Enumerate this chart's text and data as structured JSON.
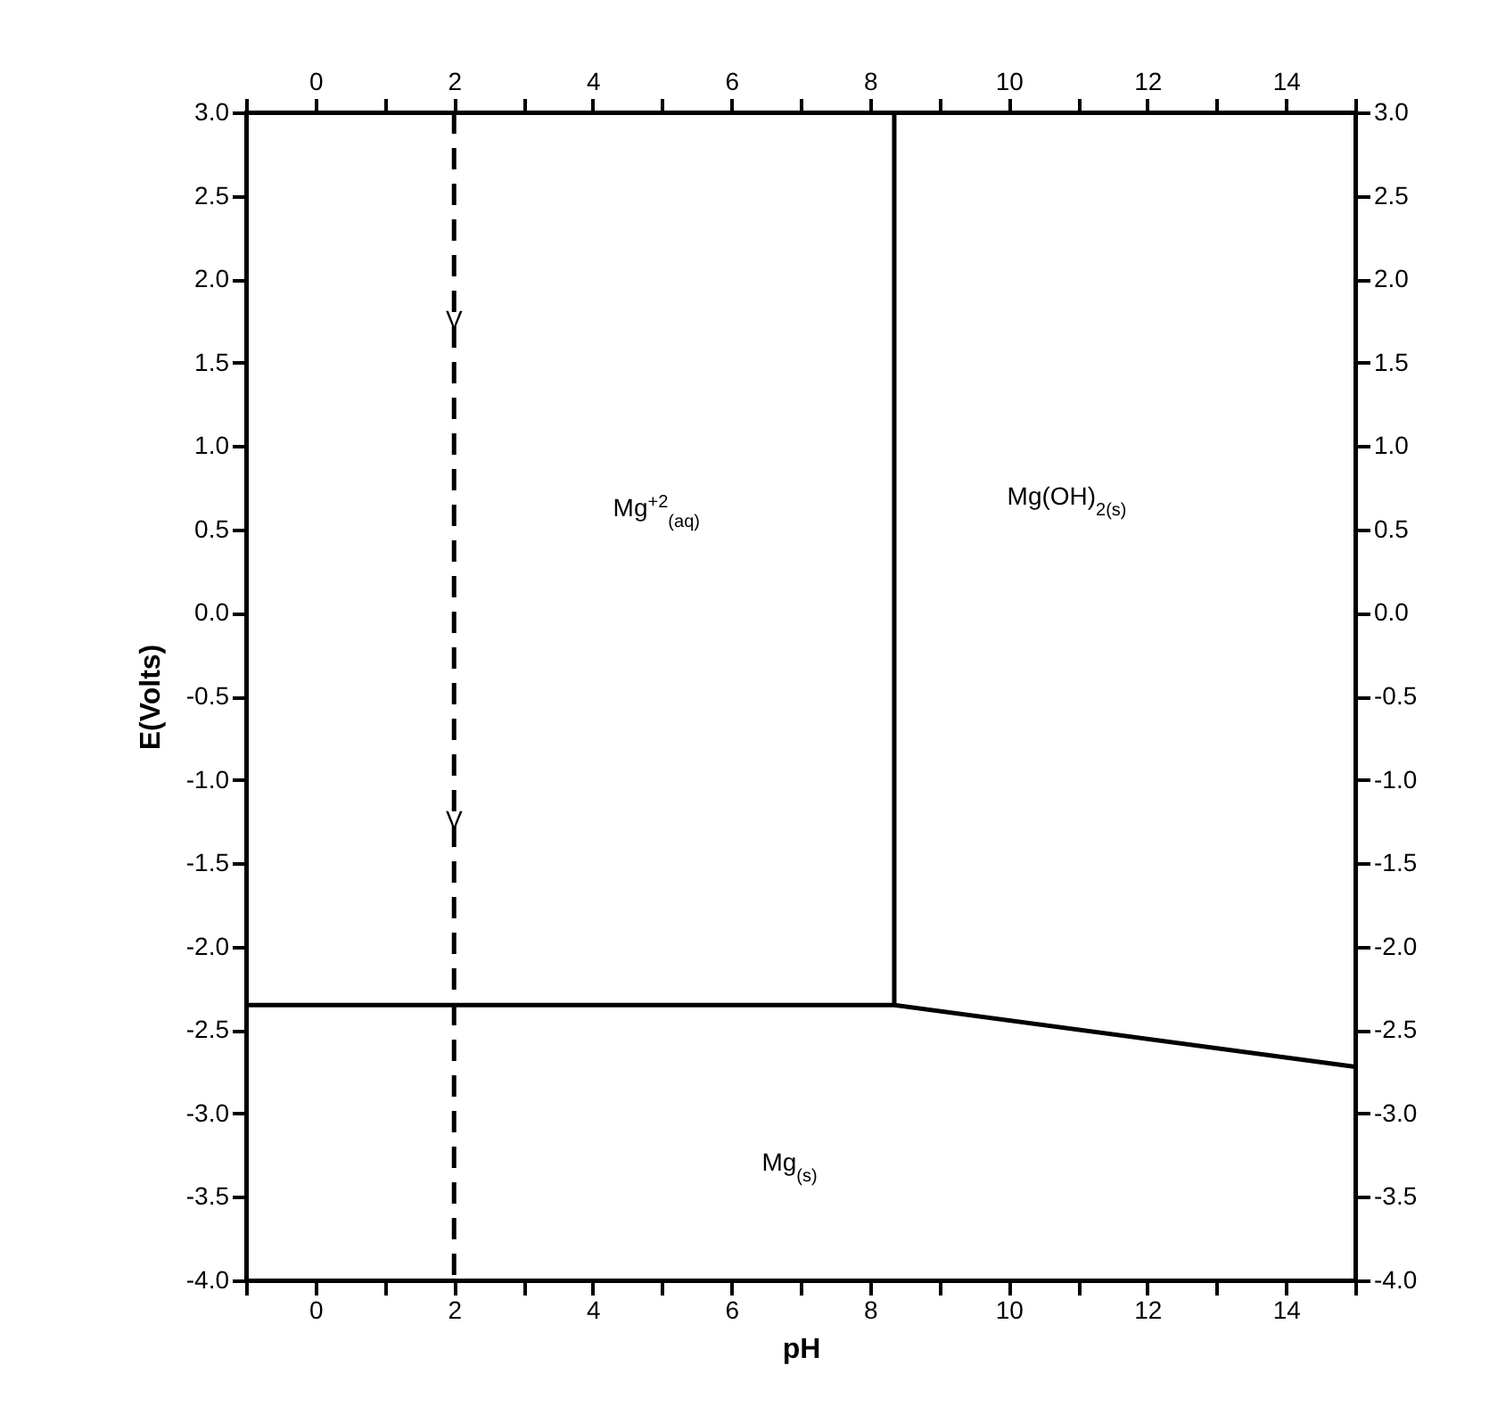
{
  "chart_data": {
    "type": "line",
    "xlabel": "pH",
    "ylabel": "E(Volts)",
    "series": [
      {
        "color": "#000000",
        "x": [
          -1,
          8.35,
          15
        ],
        "values": [
          -2.35,
          -2.35,
          -2.72
        ],
        "line_style": "solid"
      },
      {
        "color": "#000000",
        "x": [
          8.35,
          8.35
        ],
        "values": [
          -2.35,
          3
        ],
        "line_style": "solid"
      }
    ],
    "ref_lines": [
      {
        "axis": "x",
        "value": 2,
        "color": "#000000",
        "line_style": "dashed"
      }
    ],
    "xlim": [
      -1,
      15
    ],
    "ylim": [
      -4,
      3
    ],
    "xticks": [
      {
        "value": -1,
        "label": null
      },
      0,
      {
        "value": 1,
        "label": null
      },
      2,
      {
        "value": 3,
        "label": null
      },
      4,
      {
        "value": 5,
        "label": null
      },
      6,
      {
        "value": 7,
        "label": null
      },
      8,
      {
        "value": 9,
        "label": null
      },
      10,
      {
        "value": 11,
        "label": null
      },
      12,
      {
        "value": 13,
        "label": null
      },
      14,
      {
        "value": 15,
        "label": null
      }
    ],
    "x2lim": [
      -1,
      15
    ],
    "x2ticks": [
      {
        "value": -1,
        "label": null
      },
      0,
      {
        "value": 1,
        "label": null
      },
      2,
      {
        "value": 3,
        "label": null
      },
      4,
      {
        "value": 5,
        "label": null
      },
      6,
      {
        "value": 7,
        "label": null
      },
      8,
      {
        "value": 9,
        "label": null
      },
      10,
      {
        "value": 11,
        "label": null
      },
      12,
      {
        "value": 13,
        "label": null
      },
      14,
      {
        "value": 15,
        "label": null
      }
    ],
    "yticks": [
      {
        "value": 3,
        "label": "3.0"
      },
      2.5,
      {
        "value": 2,
        "label": "2.0"
      },
      1.5,
      {
        "value": 1,
        "label": "1.0"
      },
      0.5,
      {
        "value": 0,
        "label": "0.0"
      },
      -0.5,
      {
        "value": -1,
        "label": "-1.0"
      },
      -1.5,
      {
        "value": -2,
        "label": "-2.0"
      },
      -2.5,
      {
        "value": -3,
        "label": "-3.0"
      },
      -3.5,
      {
        "value": -4,
        "label": "-4.0"
      }
    ],
    "y2lim": [
      -4,
      3
    ],
    "y2ticks": [
      {
        "value": 3,
        "label": "3.0"
      },
      2.5,
      {
        "value": 2,
        "label": "2.0"
      },
      1.5,
      {
        "value": 1,
        "label": "1.0"
      },
      0.5,
      {
        "value": 0,
        "label": "0.0"
      },
      -0.5,
      {
        "value": -1,
        "label": "-1.0"
      },
      -1.5,
      {
        "value": -2,
        "label": "-2.0"
      },
      -2.5,
      {
        "value": -3,
        "label": "-3.0"
      },
      -3.5,
      {
        "value": -4,
        "label": "-4.0"
      }
    ],
    "annotations": [
      "V",
      "V",
      "Mg$^{+2}$$_{(aq)}$",
      "Mg(OH)$_{2(s)}$",
      "Mg$_{(s)}$"
    ]
  }
}
